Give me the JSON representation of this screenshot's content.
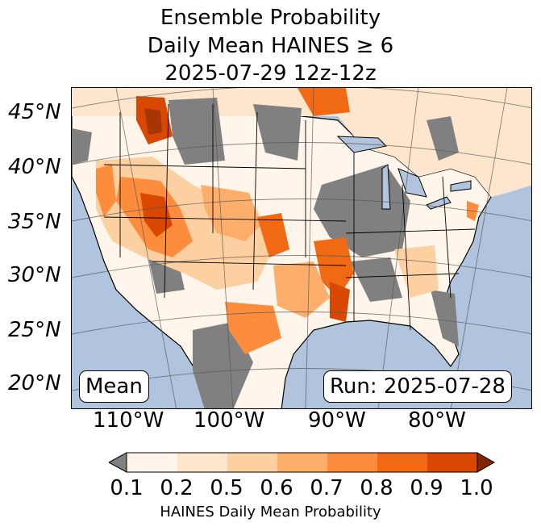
{
  "title": {
    "line1": "Ensemble Probability",
    "line2": "Daily Mean HAINES ≥ 6",
    "line3": "2025-07-29 12z-12z"
  },
  "map": {
    "lat_labels": [
      "45°N",
      "40°N",
      "35°N",
      "30°N",
      "25°N",
      "20°N"
    ],
    "lon_labels": [
      "110°W",
      "100°W",
      "90°W",
      "80°W"
    ],
    "stat_label": "Mean",
    "run_label": "Run: 2025-07-28",
    "colors": {
      "ocean": "#b0c4de",
      "below_threshold": "#808080",
      "lake": "#b0c4de"
    }
  },
  "colorbar": {
    "label": "HAINES Daily Mean Probability",
    "ticks": [
      "0.1",
      "0.2",
      "0.5",
      "0.6",
      "0.7",
      "0.8",
      "0.9",
      "1.0"
    ],
    "colors": [
      "#fff5eb",
      "#fee6ce",
      "#fdd0a2",
      "#fdae6b",
      "#fd8d3c",
      "#f16913",
      "#d94801",
      "#a63603"
    ],
    "under_color": "#808080",
    "over_color": "#7f2704"
  }
}
